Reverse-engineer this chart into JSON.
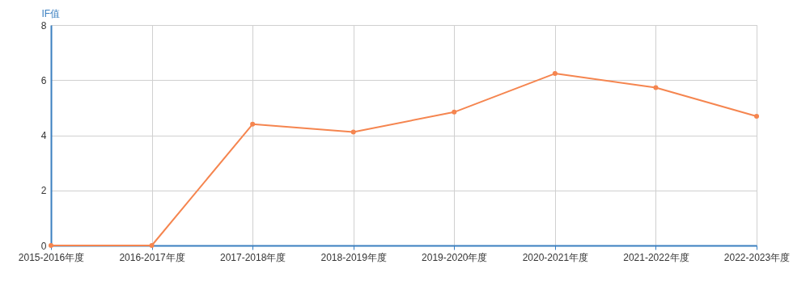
{
  "chart_data": {
    "type": "line",
    "ylabel": "IF值",
    "categories": [
      "2015-2016年度",
      "2016-2017年度",
      "2017-2018年度",
      "2018-2019年度",
      "2019-2020年度",
      "2020-2021年度",
      "2021-2022年度",
      "2022-2023年度"
    ],
    "series": [
      {
        "color": "#f5854f",
        "values": [
          0,
          0,
          4.4,
          4.12,
          4.84,
          6.24,
          5.73,
          4.69
        ]
      }
    ],
    "ylim": [
      0,
      8
    ],
    "yticks": [
      0,
      2,
      4,
      6,
      8
    ],
    "grid": true,
    "marker": "circle",
    "line_style": "solid",
    "legend": false
  }
}
